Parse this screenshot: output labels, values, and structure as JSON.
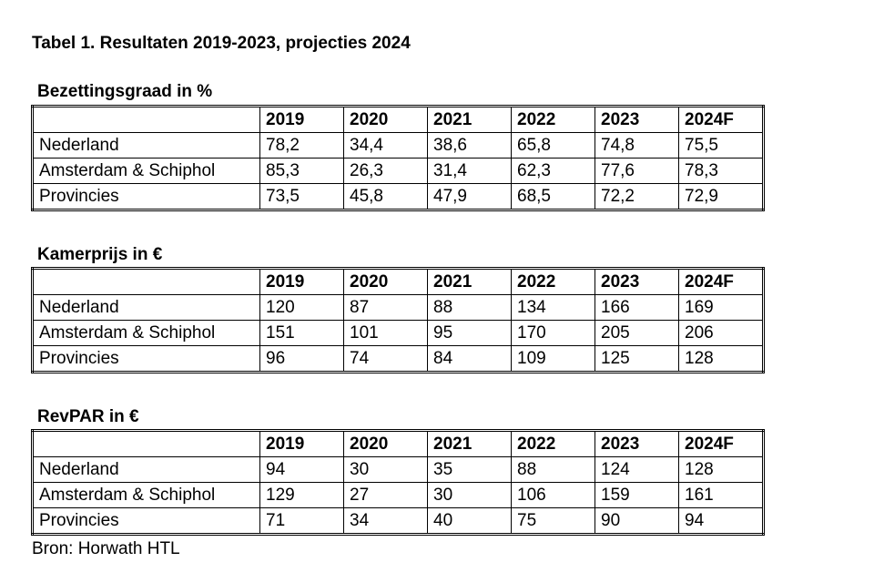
{
  "title": "Tabel 1. Resultaten 2019-2023, projecties 2024",
  "tables": [
    {
      "heading": "Bezettingsgraad in %",
      "columns": [
        "2019",
        "2020",
        "2021",
        "2022",
        "2023",
        "2024F"
      ],
      "rows": [
        {
          "label": "Nederland",
          "values": [
            "78,2",
            "34,4",
            "38,6",
            "65,8",
            "74,8",
            "75,5"
          ]
        },
        {
          "label": "Amsterdam & Schiphol",
          "values": [
            "85,3",
            "26,3",
            "31,4",
            "62,3",
            "77,6",
            "78,3"
          ]
        },
        {
          "label": "Provincies",
          "values": [
            "73,5",
            "45,8",
            "47,9",
            "68,5",
            "72,2",
            "72,9"
          ]
        }
      ]
    },
    {
      "heading": "Kamerprijs in €",
      "columns": [
        "2019",
        "2020",
        "2021",
        "2022",
        "2023",
        "2024F"
      ],
      "rows": [
        {
          "label": "Nederland",
          "values": [
            "120",
            "87",
            "88",
            "134",
            "166",
            "169"
          ]
        },
        {
          "label": "Amsterdam & Schiphol",
          "values": [
            "151",
            "101",
            "95",
            "170",
            "205",
            "206"
          ]
        },
        {
          "label": "Provincies",
          "values": [
            "96",
            "74",
            "84",
            "109",
            "125",
            "128"
          ]
        }
      ]
    },
    {
      "heading": "RevPAR in €",
      "columns": [
        "2019",
        "2020",
        "2021",
        "2022",
        "2023",
        "2024F"
      ],
      "rows": [
        {
          "label": "Nederland",
          "values": [
            "94",
            "30",
            "35",
            "88",
            "124",
            "128"
          ]
        },
        {
          "label": "Amsterdam & Schiphol",
          "values": [
            "129",
            "27",
            "30",
            "106",
            "159",
            "161"
          ]
        },
        {
          "label": "Provincies",
          "values": [
            "71",
            "34",
            "40",
            "75",
            "90",
            "94"
          ]
        }
      ]
    }
  ],
  "source": "Bron: Horwath HTL"
}
